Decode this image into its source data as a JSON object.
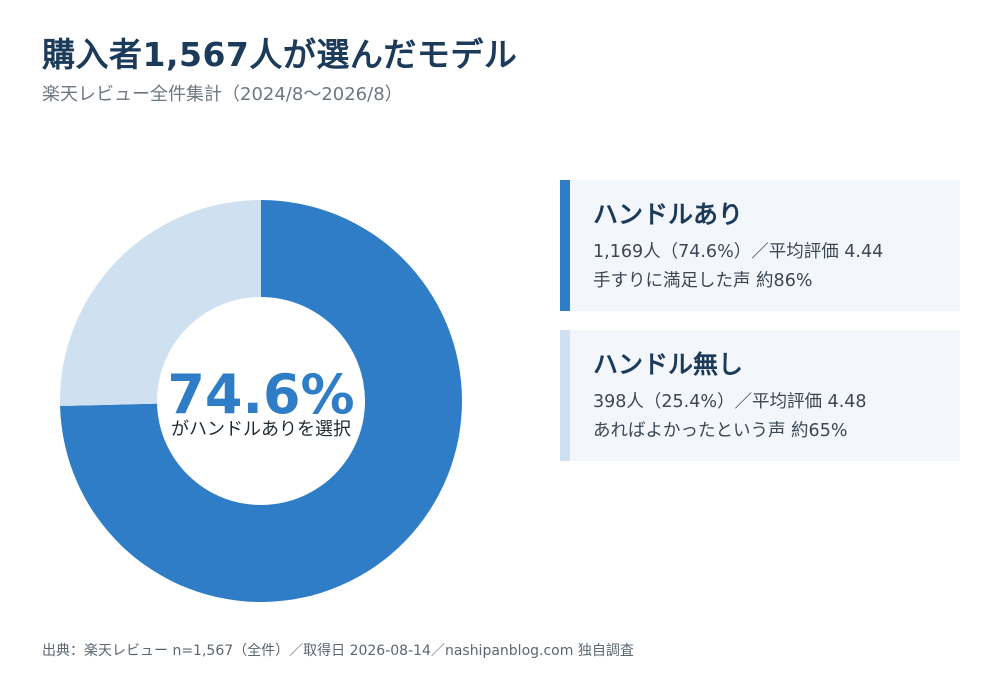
{
  "header": {
    "title": "購入者1,567人が選んだモデル",
    "subtitle": "楽天レビュー全件集計（2024/8〜2026/8）"
  },
  "center": {
    "big": "74.6%",
    "caption": "がハンドルありを選択"
  },
  "cards": [
    {
      "title": "ハンドルあり",
      "line1": "1,169人（74.6%）／平均評価 4.44",
      "line2": "手すりに満足した声 約86%",
      "accent": "#2f7dc6"
    },
    {
      "title": "ハンドル無し",
      "line1": "398人（25.4%）／平均評価 4.48",
      "line2": "あればよかったという声 約65%",
      "accent": "#cfe0f1"
    }
  ],
  "footer": {
    "source": "出典：楽天レビュー n=1,567（全件）／取得日 2026-08-14／nashipanblog.com 独自調査"
  },
  "chart_data": {
    "type": "pie",
    "donut": true,
    "categories": [
      "ハンドルあり",
      "ハンドル無し"
    ],
    "values": [
      1169,
      398
    ],
    "percentages": [
      74.6,
      25.4
    ],
    "colors": [
      "#2f7dc6",
      "#cfe0f1"
    ],
    "start_angle": "top",
    "direction": "clockwise",
    "center_label": "74.6%",
    "center_caption": "がハンドルありを選択"
  }
}
